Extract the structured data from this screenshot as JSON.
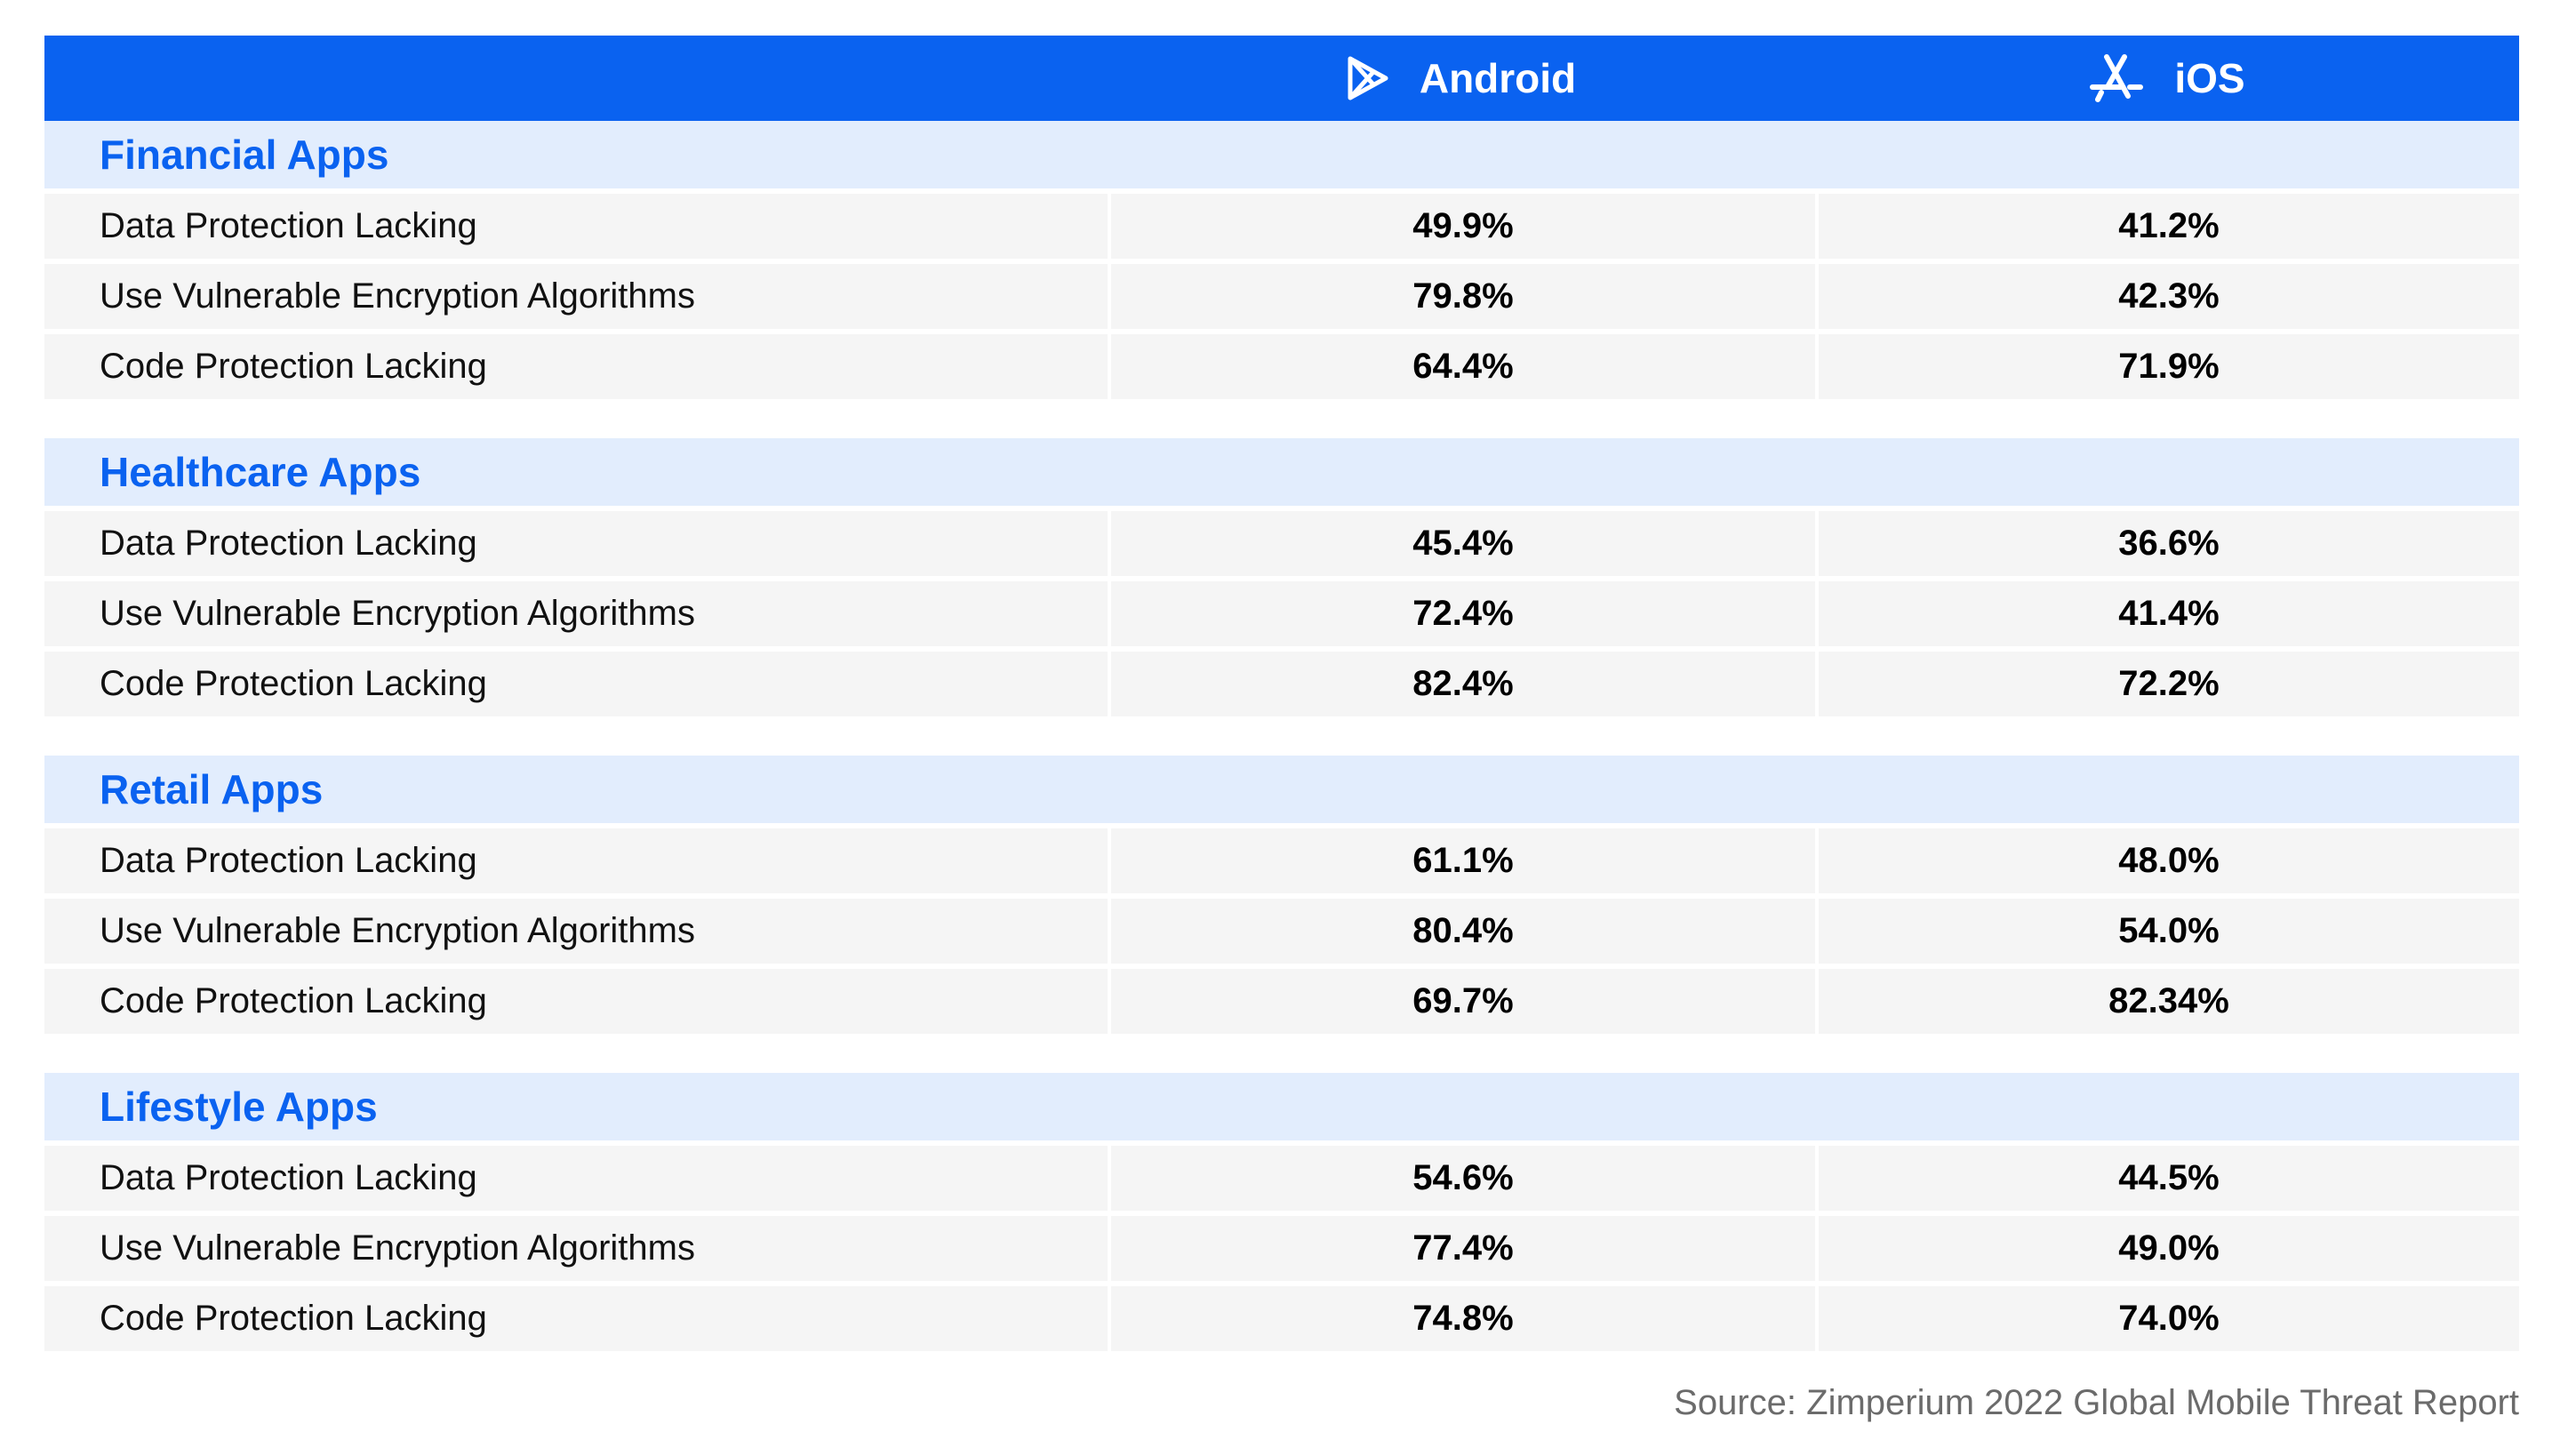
{
  "header": {
    "android_label": "Android",
    "ios_label": "iOS",
    "android_icon": "play-store-icon",
    "ios_icon": "app-store-icon"
  },
  "colors": {
    "header_bg": "#0a62f0",
    "section_title": "#0a62f0",
    "section_bg": "#e2edfd",
    "row_bg": "#f5f5f5",
    "source_text": "#6b6b6b"
  },
  "chart_data": {
    "type": "table",
    "columns": [
      "",
      "Android",
      "iOS"
    ],
    "sections": [
      {
        "title": "Financial Apps",
        "rows": [
          {
            "label": "Data Protection Lacking",
            "android": "49.9%",
            "ios": "41.2%"
          },
          {
            "label": "Use Vulnerable Encryption Algorithms",
            "android": "79.8%",
            "ios": "42.3%"
          },
          {
            "label": "Code Protection Lacking",
            "android": "64.4%",
            "ios": "71.9%"
          }
        ]
      },
      {
        "title": "Healthcare Apps",
        "rows": [
          {
            "label": "Data Protection Lacking",
            "android": "45.4%",
            "ios": "36.6%"
          },
          {
            "label": "Use Vulnerable Encryption Algorithms",
            "android": "72.4%",
            "ios": "41.4%"
          },
          {
            "label": "Code Protection Lacking",
            "android": "82.4%",
            "ios": "72.2%"
          }
        ]
      },
      {
        "title": "Retail Apps",
        "rows": [
          {
            "label": "Data Protection Lacking",
            "android": "61.1%",
            "ios": "48.0%"
          },
          {
            "label": "Use Vulnerable Encryption Algorithms",
            "android": "80.4%",
            "ios": "54.0%"
          },
          {
            "label": "Code Protection Lacking",
            "android": "69.7%",
            "ios": "82.34%"
          }
        ]
      },
      {
        "title": "Lifestyle Apps",
        "rows": [
          {
            "label": "Data Protection Lacking",
            "android": "54.6%",
            "ios": "44.5%"
          },
          {
            "label": "Use Vulnerable Encryption Algorithms",
            "android": "77.4%",
            "ios": "49.0%"
          },
          {
            "label": "Code Protection Lacking",
            "android": "74.8%",
            "ios": "74.0%"
          }
        ]
      }
    ]
  },
  "source": "Source: Zimperium 2022 Global Mobile Threat Report"
}
